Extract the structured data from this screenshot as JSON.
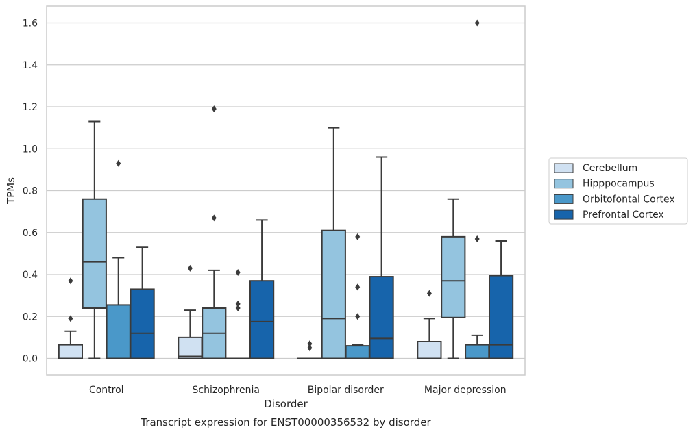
{
  "chart_data": {
    "type": "box",
    "xlabel": "Disorder",
    "ylabel": "TPMs",
    "caption": "Transcript expression for ENST00000356532 by disorder",
    "ylim": [
      -0.08,
      1.68
    ],
    "yticks": [
      0.0,
      0.2,
      0.4,
      0.6,
      0.8,
      1.0,
      1.2,
      1.4,
      1.6
    ],
    "ytick_labels": [
      "0.0",
      "0.2",
      "0.4",
      "0.6",
      "0.8",
      "1.0",
      "1.2",
      "1.4",
      "1.6"
    ],
    "grid": "horizontal",
    "legend_position": "right",
    "categories": [
      "Control",
      "Schizophrenia",
      "Bipolar disorder",
      "Major depression"
    ],
    "series": [
      {
        "name": "Cerebellum",
        "color": "#d0e1f2",
        "boxes": [
          {
            "whislo": 0.0,
            "q1": 0.0,
            "med": 0.0,
            "q3": 0.065,
            "whishi": 0.13,
            "fliers": [
              0.19,
              0.37
            ]
          },
          {
            "whislo": 0.0,
            "q1": 0.0,
            "med": 0.01,
            "q3": 0.1,
            "whishi": 0.23,
            "fliers": [
              0.43
            ]
          },
          {
            "whislo": 0.0,
            "q1": 0.0,
            "med": 0.0,
            "q3": 0.0,
            "whishi": 0.0,
            "fliers": [
              0.05,
              0.07
            ]
          },
          {
            "whislo": 0.0,
            "q1": 0.0,
            "med": 0.0,
            "q3": 0.08,
            "whishi": 0.19,
            "fliers": [
              0.31
            ]
          }
        ]
      },
      {
        "name": "Hipppocampus",
        "color": "#94c4df",
        "boxes": [
          {
            "whislo": 0.0,
            "q1": 0.24,
            "med": 0.46,
            "q3": 0.76,
            "whishi": 1.13,
            "fliers": []
          },
          {
            "whislo": 0.0,
            "q1": 0.0,
            "med": 0.12,
            "q3": 0.24,
            "whishi": 0.42,
            "fliers": [
              0.67,
              1.19
            ]
          },
          {
            "whislo": 0.0,
            "q1": 0.0,
            "med": 0.19,
            "q3": 0.61,
            "whishi": 1.1,
            "fliers": []
          },
          {
            "whislo": 0.0,
            "q1": 0.195,
            "med": 0.37,
            "q3": 0.58,
            "whishi": 0.76,
            "fliers": []
          }
        ]
      },
      {
        "name": "Orbitofontal Cortex",
        "color": "#4a98c9",
        "boxes": [
          {
            "whislo": 0.0,
            "q1": 0.0,
            "med": 0.0,
            "q3": 0.255,
            "whishi": 0.48,
            "fliers": [
              0.93
            ]
          },
          {
            "whislo": 0.0,
            "q1": 0.0,
            "med": 0.0,
            "q3": 0.0,
            "whishi": 0.0,
            "fliers": [
              0.24,
              0.26,
              0.41
            ]
          },
          {
            "whislo": 0.0,
            "q1": 0.0,
            "med": 0.0,
            "q3": 0.06,
            "whishi": 0.065,
            "fliers": [
              0.2,
              0.34,
              0.58
            ]
          },
          {
            "whislo": 0.0,
            "q1": 0.0,
            "med": 0.0,
            "q3": 0.065,
            "whishi": 0.11,
            "fliers": [
              0.57,
              1.6
            ]
          }
        ]
      },
      {
        "name": "Prefrontal Cortex",
        "color": "#1764ab",
        "boxes": [
          {
            "whislo": 0.0,
            "q1": 0.0,
            "med": 0.12,
            "q3": 0.33,
            "whishi": 0.53,
            "fliers": []
          },
          {
            "whislo": 0.0,
            "q1": 0.0,
            "med": 0.175,
            "q3": 0.37,
            "whishi": 0.66,
            "fliers": []
          },
          {
            "whislo": 0.0,
            "q1": 0.0,
            "med": 0.095,
            "q3": 0.39,
            "whishi": 0.96,
            "fliers": []
          },
          {
            "whislo": 0.0,
            "q1": 0.0,
            "med": 0.065,
            "q3": 0.395,
            "whishi": 0.56,
            "fliers": []
          }
        ]
      }
    ]
  }
}
